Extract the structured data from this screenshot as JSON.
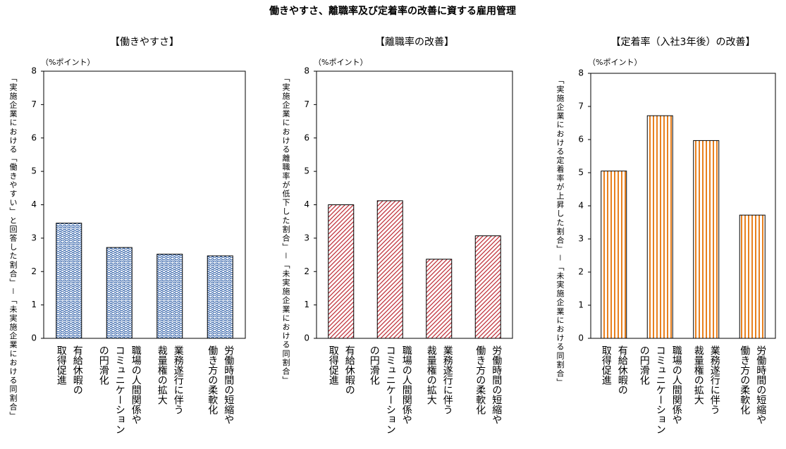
{
  "title": "働きやすさ、離職率及び定着率の改善に資する雇用管理",
  "chart_data": [
    {
      "type": "bar",
      "title": "【働きやすさ】",
      "unit_label": "（%ポイント）",
      "ylabel": "「実施企業における「働きやすい」と回答した割合」－「未実施企業における同割合」",
      "categories": [
        "有給休暇の\n取得促進",
        "職場の人間関係や\nコミュニケーション\nの円滑化",
        "業務遂行に伴う\n裁量権の拡大",
        "労働時間の短縮や\n働き方の柔軟化"
      ],
      "values": [
        3.45,
        2.72,
        2.52,
        2.47
      ],
      "color": "#2e5fa8",
      "pattern": "dots",
      "ylim": [
        0,
        8
      ],
      "yticks": [
        0,
        1,
        2,
        3,
        4,
        5,
        6,
        7,
        8
      ]
    },
    {
      "type": "bar",
      "title": "【離職率の改善】",
      "unit_label": "（%ポイント）",
      "ylabel": "「実施企業における離職率が低下した割合」－「未実施企業における同割合」",
      "categories": [
        "有給休暇の\n取得促進",
        "職場の人間関係や\nコミュニケーション\nの円滑化",
        "業務遂行に伴う\n裁量権の拡大",
        "労働時間の短縮や\n働き方の柔軟化"
      ],
      "values": [
        4.0,
        4.12,
        2.37,
        3.07
      ],
      "color": "#c0313b",
      "pattern": "diagonal",
      "ylim": [
        0,
        8
      ],
      "yticks": [
        0,
        1,
        2,
        3,
        4,
        5,
        6,
        7,
        8
      ]
    },
    {
      "type": "bar",
      "title": "【定着率（入社3年後）の改善】",
      "unit_label": "（%ポイント）",
      "ylabel": "「実施企業における定着率が上昇した割合」－「未実施企業における同割合」",
      "categories": [
        "有給休暇の\n取得促進",
        "職場の人間関係や\nコミュニケーション\nの円滑化",
        "業務遂行に伴う\n裁量権の拡大",
        "労働時間の短縮や\n働き方の柔軟化"
      ],
      "values": [
        5.05,
        6.72,
        5.97,
        3.72
      ],
      "color": "#e8801e",
      "pattern": "vertical",
      "ylim": [
        0,
        8
      ],
      "yticks": [
        0,
        1,
        2,
        3,
        4,
        5,
        6,
        7,
        8
      ]
    }
  ]
}
